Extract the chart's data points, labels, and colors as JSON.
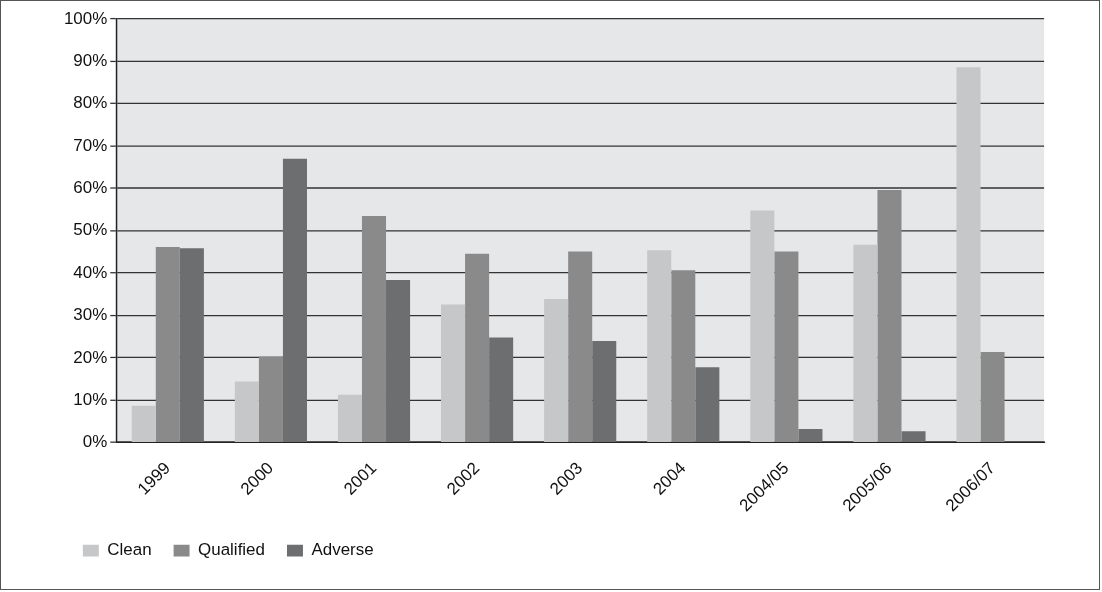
{
  "chart_data": {
    "type": "bar",
    "categories": [
      "1999",
      "2000",
      "2001",
      "2002",
      "2003",
      "2004",
      "2004/05",
      "2005/06",
      "2006/07"
    ],
    "series": [
      {
        "name": "Clean",
        "color": "#c6c7c8",
        "values": [
          8.7,
          14.4,
          11.3,
          32.6,
          33.9,
          45.4,
          54.8,
          46.7,
          88.6
        ]
      },
      {
        "name": "Qualified",
        "color": "#8a8a8a",
        "values": [
          46.2,
          20.3,
          53.5,
          44.6,
          45.1,
          40.7,
          45.1,
          59.6,
          21.4
        ]
      },
      {
        "name": "Adverse",
        "color": "#6d6e70",
        "values": [
          45.9,
          67.0,
          38.4,
          24.8,
          24.0,
          17.8,
          3.2,
          2.7,
          null
        ]
      }
    ],
    "ylim": [
      0,
      100
    ],
    "yticks": [
      {
        "value": 0,
        "label": "0%"
      },
      {
        "value": 10,
        "label": "10%"
      },
      {
        "value": 20,
        "label": "20%"
      },
      {
        "value": 30,
        "label": "30%"
      },
      {
        "value": 40,
        "label": "40%"
      },
      {
        "value": 50,
        "label": "50%"
      },
      {
        "value": 60,
        "label": "60%"
      },
      {
        "value": 70,
        "label": "70%"
      },
      {
        "value": 80,
        "label": "80%"
      },
      {
        "value": 90,
        "label": "90%"
      },
      {
        "value": 100,
        "label": "100%"
      }
    ],
    "grid": "y",
    "legend": "bottom left"
  }
}
